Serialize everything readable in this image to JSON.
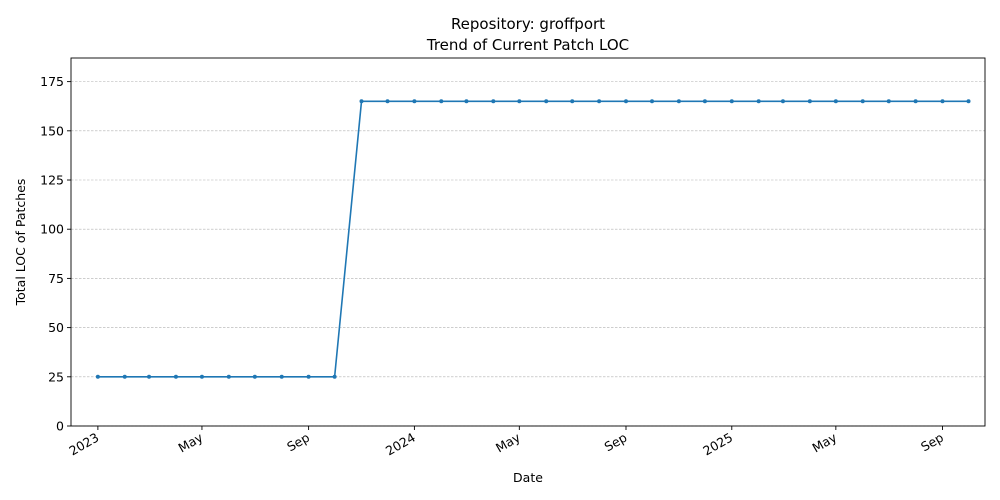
{
  "chart_data": {
    "type": "line",
    "title": "Repository: groffport",
    "subtitle": "Trend of Current Patch LOC",
    "xlabel": "Date",
    "ylabel": "Total LOC of Patches",
    "ylim": [
      0,
      187
    ],
    "xlim": [
      "2022-12-01",
      "2025-10-20"
    ],
    "grid": "horizontal, dashed",
    "y_ticks": [
      0,
      25,
      50,
      75,
      100,
      125,
      150,
      175
    ],
    "x_ticks": [
      {
        "date": "2023-01-01",
        "label": "2023"
      },
      {
        "date": "2023-05-01",
        "label": "May"
      },
      {
        "date": "2023-09-01",
        "label": "Sep"
      },
      {
        "date": "2024-01-01",
        "label": "2024"
      },
      {
        "date": "2024-05-01",
        "label": "May"
      },
      {
        "date": "2024-09-01",
        "label": "Sep"
      },
      {
        "date": "2025-01-01",
        "label": "2025"
      },
      {
        "date": "2025-05-01",
        "label": "May"
      },
      {
        "date": "2025-09-01",
        "label": "Sep"
      }
    ],
    "color": "#1f77b4",
    "series": [
      {
        "x": [
          "2023-01-01",
          "2023-02-01",
          "2023-03-01",
          "2023-04-01",
          "2023-05-01",
          "2023-06-01",
          "2023-07-01",
          "2023-08-01",
          "2023-09-01",
          "2023-10-01",
          "2023-11-01",
          "2023-12-01",
          "2024-01-01",
          "2024-02-01",
          "2024-03-01",
          "2024-04-01",
          "2024-05-01",
          "2024-06-01",
          "2024-07-01",
          "2024-08-01",
          "2024-09-01",
          "2024-10-01",
          "2024-11-01",
          "2024-12-01",
          "2025-01-01",
          "2025-02-01",
          "2025-03-01",
          "2025-04-01",
          "2025-05-01",
          "2025-06-01",
          "2025-07-01",
          "2025-08-01",
          "2025-09-01",
          "2025-10-01"
        ],
        "values": [
          25,
          25,
          25,
          25,
          25,
          25,
          25,
          25,
          25,
          25,
          165,
          165,
          165,
          165,
          165,
          165,
          165,
          165,
          165,
          165,
          165,
          165,
          165,
          165,
          165,
          165,
          165,
          165,
          165,
          165,
          165,
          165,
          165,
          165
        ]
      }
    ]
  }
}
